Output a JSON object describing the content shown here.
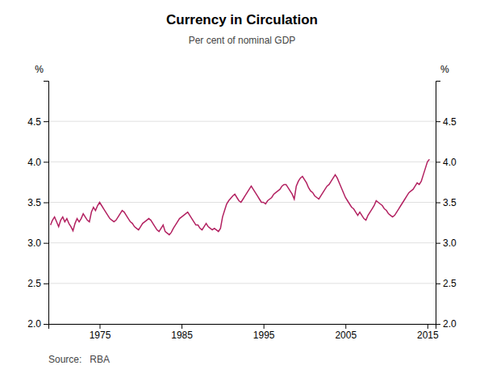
{
  "chart_data": {
    "type": "line",
    "title": "Currency in Circulation",
    "subtitle": "Per cent of nominal GDP",
    "y_label": "%",
    "y2_label": "%",
    "source": "Source:   RBA",
    "color": "#B22060",
    "grid": true,
    "xlim": [
      1968.75,
      2016.0
    ],
    "xticks": [
      1975,
      1985,
      1995,
      2005,
      2015
    ],
    "ylim": [
      2.0,
      5.0
    ],
    "yticks": [
      {
        "value": 2.0,
        "label": "2.0"
      },
      2.5,
      {
        "value": 3.0,
        "label": "3.0"
      },
      3.5,
      {
        "value": 4.0,
        "label": "4.0"
      },
      4.5
    ],
    "y2lim": [
      2.0,
      5.0
    ],
    "y2ticks": [
      {
        "value": 2.0,
        "label": "2.0"
      },
      2.5,
      {
        "value": 3.0,
        "label": "3.0"
      },
      3.5,
      {
        "value": 4.0,
        "label": "4.0"
      },
      4.5
    ],
    "x": [
      1969.0,
      1969.25,
      1969.5,
      1969.75,
      1970.0,
      1970.25,
      1970.5,
      1970.75,
      1971.0,
      1971.25,
      1971.5,
      1971.75,
      1972.0,
      1972.25,
      1972.5,
      1972.75,
      1973.0,
      1973.25,
      1973.5,
      1973.75,
      1974.0,
      1974.25,
      1974.5,
      1974.75,
      1975.0,
      1975.25,
      1975.5,
      1975.75,
      1976.0,
      1976.25,
      1976.5,
      1976.75,
      1977.0,
      1977.25,
      1977.5,
      1977.75,
      1978.0,
      1978.25,
      1978.5,
      1978.75,
      1979.0,
      1979.25,
      1979.5,
      1979.75,
      1980.0,
      1980.25,
      1980.5,
      1980.75,
      1981.0,
      1981.25,
      1981.5,
      1981.75,
      1982.0,
      1982.25,
      1982.5,
      1982.75,
      1983.0,
      1983.25,
      1983.5,
      1983.75,
      1984.0,
      1984.25,
      1984.5,
      1984.75,
      1985.0,
      1985.25,
      1985.5,
      1985.75,
      1986.0,
      1986.25,
      1986.5,
      1986.75,
      1987.0,
      1987.25,
      1987.5,
      1987.75,
      1988.0,
      1988.25,
      1988.5,
      1988.75,
      1989.0,
      1989.25,
      1989.5,
      1989.75,
      1990.0,
      1990.25,
      1990.5,
      1990.75,
      1991.0,
      1991.25,
      1991.5,
      1991.75,
      1992.0,
      1992.25,
      1992.5,
      1992.75,
      1993.0,
      1993.25,
      1993.5,
      1993.75,
      1994.0,
      1994.25,
      1994.5,
      1994.75,
      1995.0,
      1995.25,
      1995.5,
      1995.75,
      1996.0,
      1996.25,
      1996.5,
      1996.75,
      1997.0,
      1997.25,
      1997.5,
      1997.75,
      1998.0,
      1998.25,
      1998.5,
      1998.75,
      1999.0,
      1999.25,
      1999.5,
      1999.75,
      2000.0,
      2000.25,
      2000.5,
      2000.75,
      2001.0,
      2001.25,
      2001.5,
      2001.75,
      2002.0,
      2002.25,
      2002.5,
      2002.75,
      2003.0,
      2003.25,
      2003.5,
      2003.75,
      2004.0,
      2004.25,
      2004.5,
      2004.75,
      2005.0,
      2005.25,
      2005.5,
      2005.75,
      2006.0,
      2006.25,
      2006.5,
      2006.75,
      2007.0,
      2007.25,
      2007.5,
      2007.75,
      2008.0,
      2008.25,
      2008.5,
      2008.75,
      2009.0,
      2009.25,
      2009.5,
      2009.75,
      2010.0,
      2010.25,
      2010.5,
      2010.75,
      2011.0,
      2011.25,
      2011.5,
      2011.75,
      2012.0,
      2012.25,
      2012.5,
      2012.75,
      2013.0,
      2013.25,
      2013.5,
      2013.75,
      2014.0,
      2014.25,
      2014.5,
      2014.75,
      2015.0,
      2015.25
    ],
    "values": [
      3.22,
      3.28,
      3.32,
      3.26,
      3.2,
      3.28,
      3.32,
      3.26,
      3.3,
      3.24,
      3.2,
      3.15,
      3.24,
      3.3,
      3.26,
      3.3,
      3.36,
      3.32,
      3.28,
      3.26,
      3.38,
      3.44,
      3.4,
      3.46,
      3.5,
      3.46,
      3.42,
      3.38,
      3.34,
      3.3,
      3.28,
      3.26,
      3.28,
      3.32,
      3.36,
      3.4,
      3.38,
      3.34,
      3.3,
      3.26,
      3.24,
      3.2,
      3.18,
      3.16,
      3.2,
      3.24,
      3.26,
      3.28,
      3.3,
      3.28,
      3.24,
      3.2,
      3.16,
      3.14,
      3.18,
      3.22,
      3.14,
      3.12,
      3.1,
      3.13,
      3.18,
      3.22,
      3.26,
      3.3,
      3.32,
      3.34,
      3.36,
      3.38,
      3.34,
      3.3,
      3.26,
      3.22,
      3.22,
      3.18,
      3.16,
      3.2,
      3.24,
      3.2,
      3.18,
      3.16,
      3.18,
      3.16,
      3.14,
      3.18,
      3.32,
      3.4,
      3.48,
      3.52,
      3.55,
      3.58,
      3.6,
      3.56,
      3.52,
      3.5,
      3.54,
      3.58,
      3.62,
      3.66,
      3.7,
      3.66,
      3.62,
      3.58,
      3.54,
      3.5,
      3.5,
      3.48,
      3.52,
      3.54,
      3.56,
      3.6,
      3.62,
      3.64,
      3.66,
      3.7,
      3.72,
      3.72,
      3.68,
      3.64,
      3.6,
      3.54,
      3.7,
      3.76,
      3.8,
      3.82,
      3.78,
      3.74,
      3.68,
      3.64,
      3.62,
      3.58,
      3.56,
      3.54,
      3.58,
      3.62,
      3.66,
      3.7,
      3.72,
      3.76,
      3.8,
      3.84,
      3.8,
      3.74,
      3.68,
      3.62,
      3.56,
      3.52,
      3.48,
      3.44,
      3.42,
      3.38,
      3.34,
      3.38,
      3.34,
      3.3,
      3.28,
      3.34,
      3.38,
      3.42,
      3.46,
      3.52,
      3.5,
      3.48,
      3.46,
      3.42,
      3.4,
      3.36,
      3.34,
      3.32,
      3.34,
      3.38,
      3.42,
      3.46,
      3.5,
      3.54,
      3.58,
      3.62,
      3.64,
      3.66,
      3.7,
      3.74,
      3.72,
      3.76,
      3.84,
      3.92,
      4.0,
      4.03
    ]
  }
}
